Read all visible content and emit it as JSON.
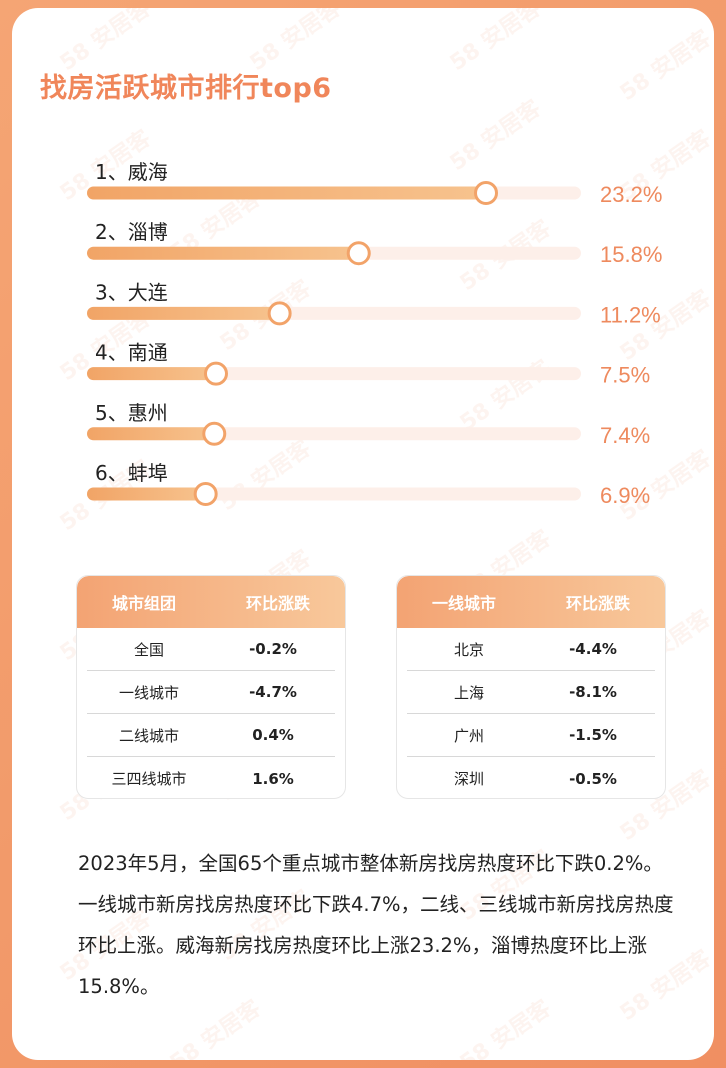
{
  "title": "找房活跃城市排行top6",
  "watermark_text": "58 安居客",
  "chart_data": {
    "type": "bar",
    "categories": [
      "1、威海",
      "2、淄博",
      "3、大连",
      "4、南通",
      "5、惠州",
      "6、蚌埠"
    ],
    "values": [
      23.2,
      15.8,
      11.2,
      7.5,
      7.4,
      6.9
    ],
    "value_labels": [
      "23.2%",
      "15.8%",
      "11.2%",
      "7.5%",
      "7.4%",
      "6.9%"
    ],
    "xlim": [
      0,
      30
    ],
    "colors": {
      "bar_start": "#f7bf86",
      "bar_end": "#f1a466",
      "track": "#fdefe9",
      "value_text": "#ee8a5e",
      "knob_stroke": "#f2a369"
    }
  },
  "table_city_groups": {
    "headers": [
      "城市组团",
      "环比涨跌"
    ],
    "rows": [
      [
        "全国",
        "-0.2%"
      ],
      [
        "一线城市",
        "-4.7%"
      ],
      [
        "二线城市",
        "0.4%"
      ],
      [
        "三四线城市",
        "1.6%"
      ]
    ]
  },
  "table_tier1": {
    "headers": [
      "一线城市",
      "环比涨跌"
    ],
    "rows": [
      [
        "北京",
        "-4.4%"
      ],
      [
        "上海",
        "-8.1%"
      ],
      [
        "广州",
        "-1.5%"
      ],
      [
        "深圳",
        "-0.5%"
      ]
    ]
  },
  "summary": "2023年5月，全国65个重点城市整体新房找房热度环比下跌0.2%。一线城市新房找房热度环比下跌4.7%，二线、三线城市新房找房热度环比上涨。威海新房找房热度环比上涨23.2%，淄博热度环比上涨15.8%。"
}
